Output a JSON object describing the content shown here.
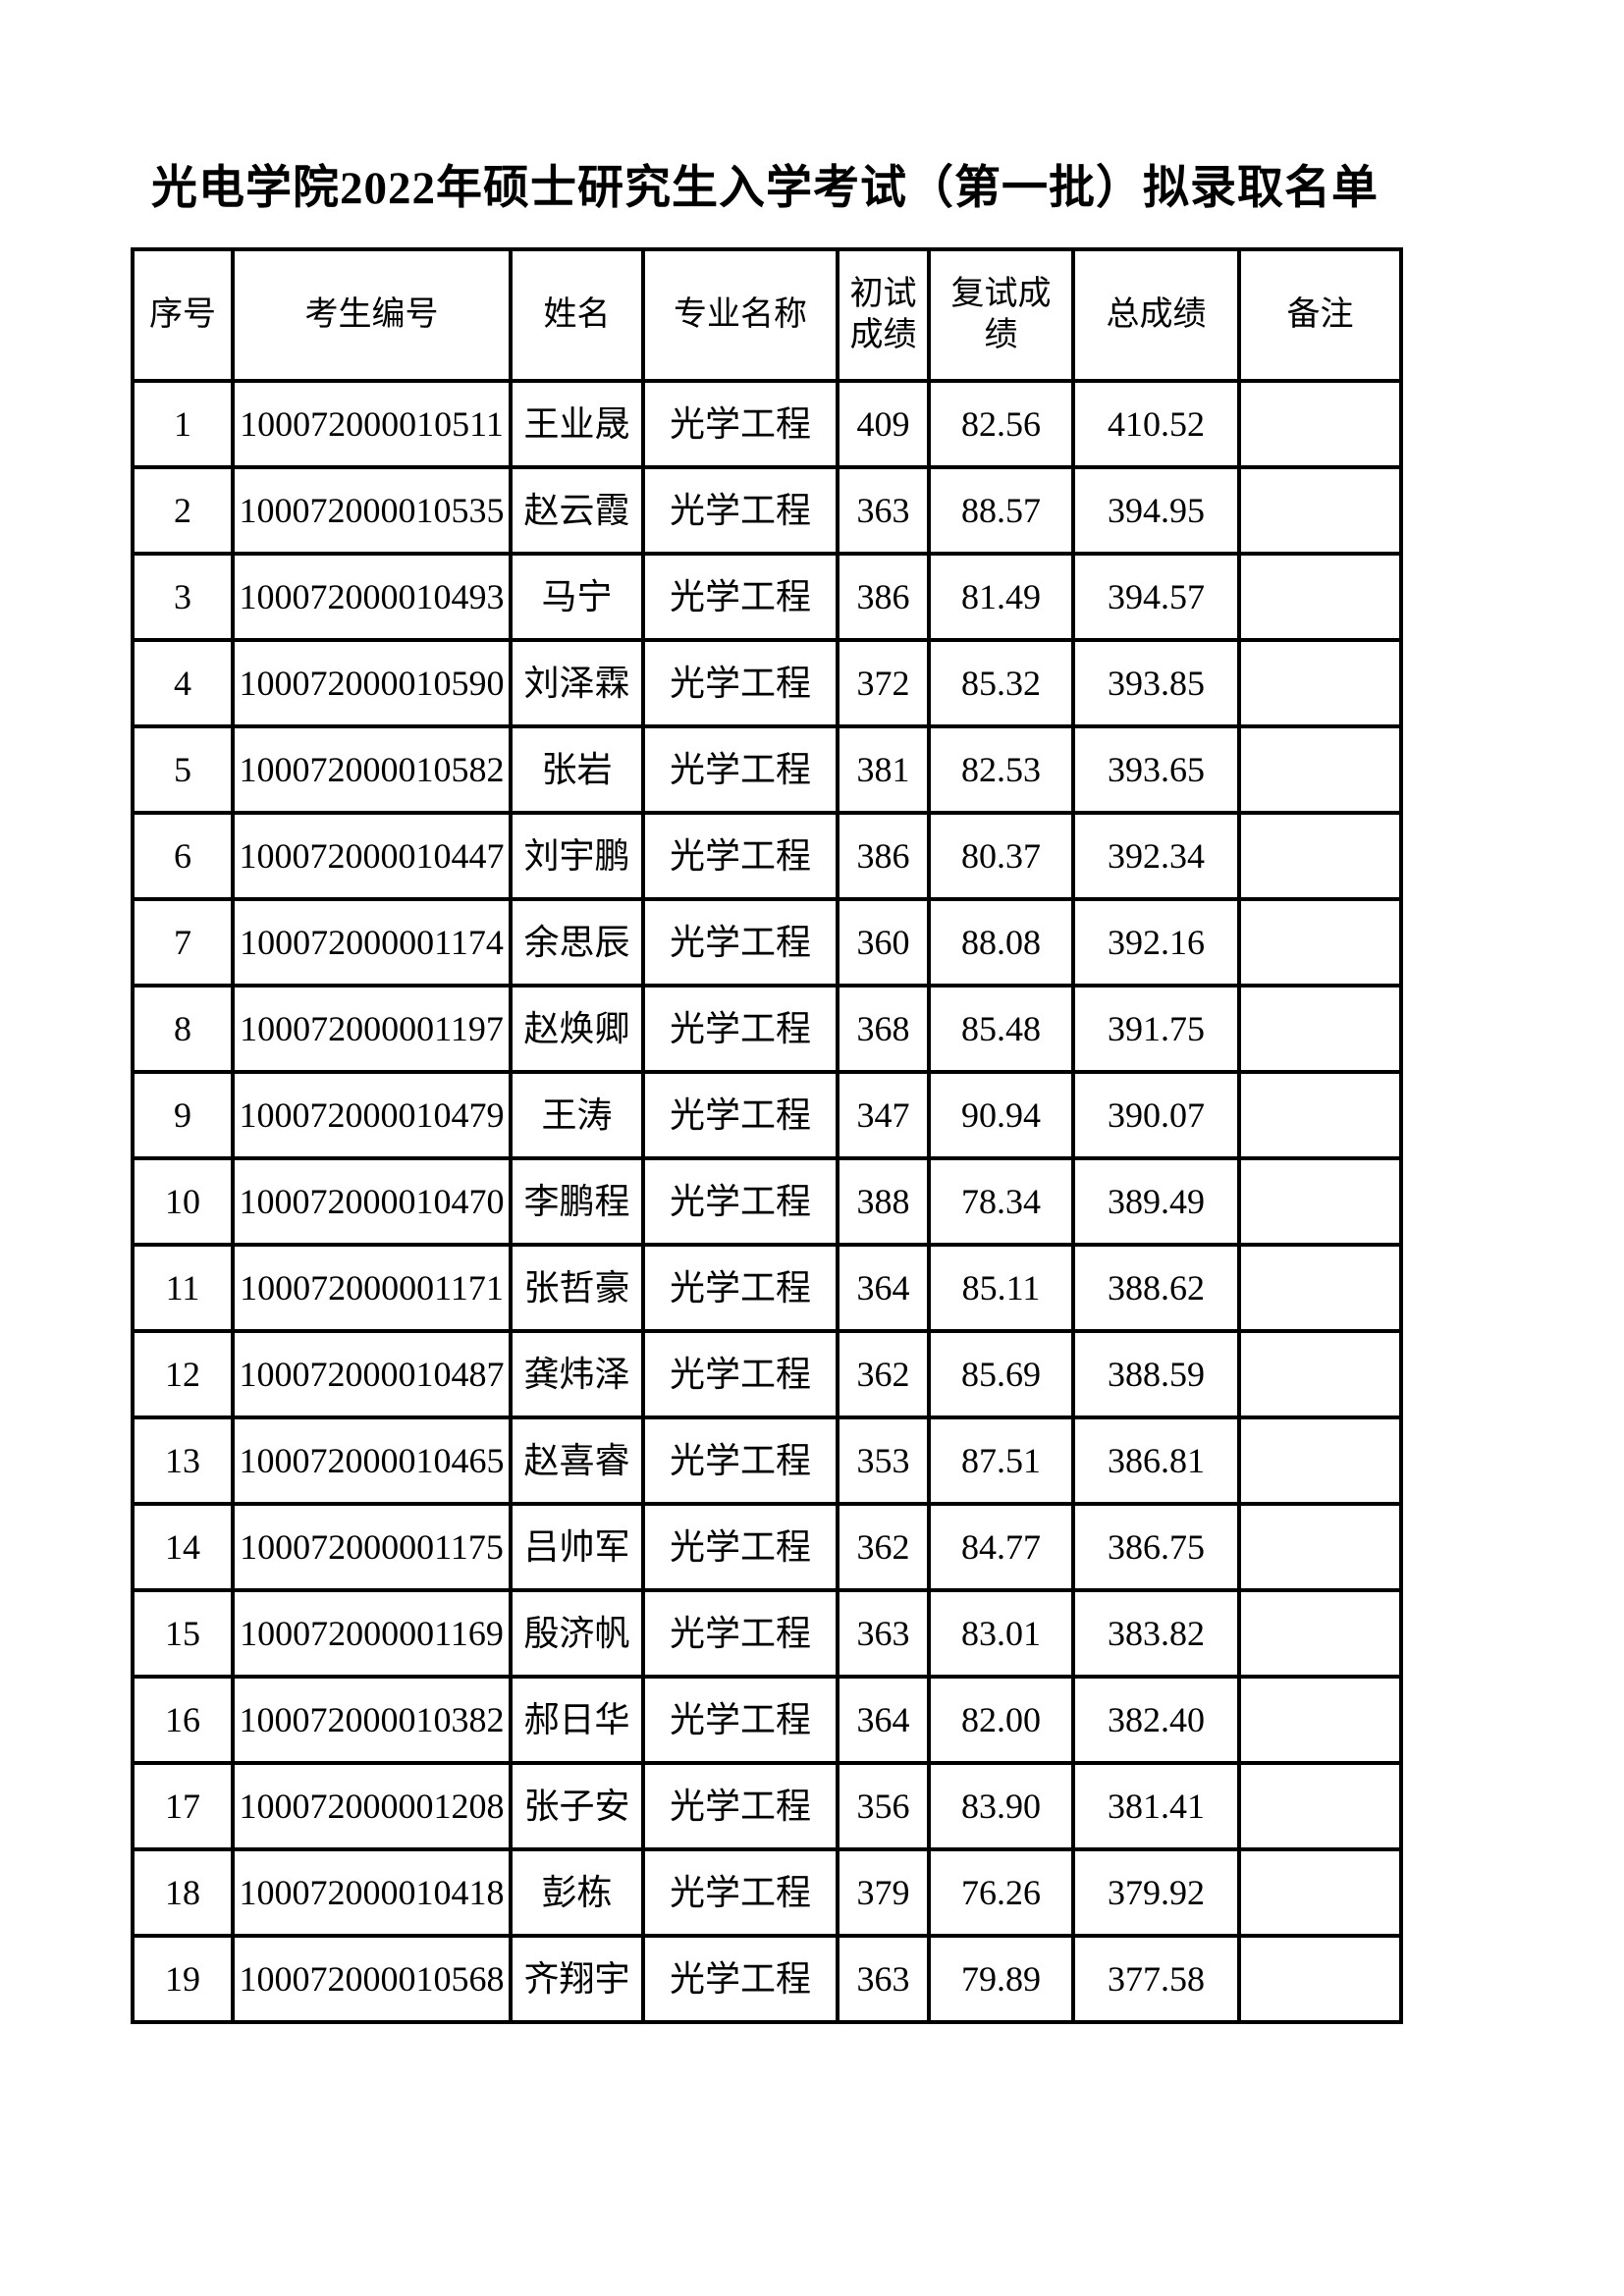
{
  "page": {
    "title": "光电学院2022年硕士研究生入学考试（第一批）拟录取名单"
  },
  "table": {
    "headers": [
      "序号",
      "考生编号",
      "姓名",
      "专业名称",
      "初试成绩",
      "复试成绩",
      "总成绩",
      "备注"
    ],
    "rows": [
      [
        "1",
        "100072000010511",
        "王业晟",
        "光学工程",
        "409",
        "82.56",
        "410.52",
        ""
      ],
      [
        "2",
        "100072000010535",
        "赵云霞",
        "光学工程",
        "363",
        "88.57",
        "394.95",
        ""
      ],
      [
        "3",
        "100072000010493",
        "马宁",
        "光学工程",
        "386",
        "81.49",
        "394.57",
        ""
      ],
      [
        "4",
        "100072000010590",
        "刘泽霖",
        "光学工程",
        "372",
        "85.32",
        "393.85",
        ""
      ],
      [
        "5",
        "100072000010582",
        "张岩",
        "光学工程",
        "381",
        "82.53",
        "393.65",
        ""
      ],
      [
        "6",
        "100072000010447",
        "刘宇鹏",
        "光学工程",
        "386",
        "80.37",
        "392.34",
        ""
      ],
      [
        "7",
        "100072000001174",
        "余思辰",
        "光学工程",
        "360",
        "88.08",
        "392.16",
        ""
      ],
      [
        "8",
        "100072000001197",
        "赵焕卿",
        "光学工程",
        "368",
        "85.48",
        "391.75",
        ""
      ],
      [
        "9",
        "100072000010479",
        "王涛",
        "光学工程",
        "347",
        "90.94",
        "390.07",
        ""
      ],
      [
        "10",
        "100072000010470",
        "李鹏程",
        "光学工程",
        "388",
        "78.34",
        "389.49",
        ""
      ],
      [
        "11",
        "100072000001171",
        "张哲豪",
        "光学工程",
        "364",
        "85.11",
        "388.62",
        ""
      ],
      [
        "12",
        "100072000010487",
        "龚炜泽",
        "光学工程",
        "362",
        "85.69",
        "388.59",
        ""
      ],
      [
        "13",
        "100072000010465",
        "赵喜睿",
        "光学工程",
        "353",
        "87.51",
        "386.81",
        ""
      ],
      [
        "14",
        "100072000001175",
        "吕帅军",
        "光学工程",
        "362",
        "84.77",
        "386.75",
        ""
      ],
      [
        "15",
        "100072000001169",
        "殷济帆",
        "光学工程",
        "363",
        "83.01",
        "383.82",
        ""
      ],
      [
        "16",
        "100072000010382",
        "郝日华",
        "光学工程",
        "364",
        "82.00",
        "382.40",
        ""
      ],
      [
        "17",
        "100072000001208",
        "张子安",
        "光学工程",
        "356",
        "83.90",
        "381.41",
        ""
      ],
      [
        "18",
        "100072000010418",
        "彭栋",
        "光学工程",
        "379",
        "76.26",
        "379.92",
        ""
      ],
      [
        "19",
        "100072000010568",
        "齐翔宇",
        "光学工程",
        "363",
        "79.89",
        "377.58",
        ""
      ]
    ]
  }
}
